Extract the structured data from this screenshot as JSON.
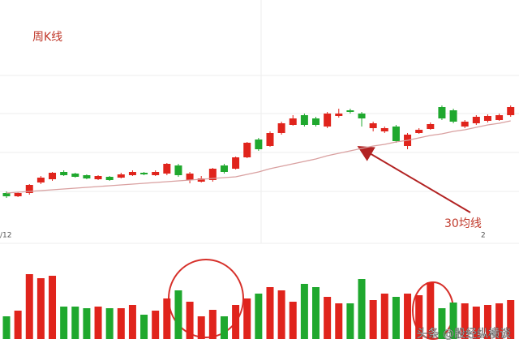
{
  "chart_data": {
    "type": "candlestick",
    "title": "周K线",
    "annotation": "30均线",
    "x_tick_labels": [
      "/12",
      "2"
    ],
    "up_color": "#e0241c",
    "down_color": "#1fa82e",
    "ylim": [
      0,
      280
    ],
    "ohlc": [
      [
        42,
        38,
        44,
        36
      ],
      [
        38,
        42,
        43,
        37
      ],
      [
        42,
        52,
        53,
        40
      ],
      [
        55,
        61,
        63,
        53
      ],
      [
        59,
        67,
        68,
        57
      ],
      [
        68,
        64,
        70,
        63
      ],
      [
        66,
        62,
        67,
        61
      ],
      [
        64,
        60,
        65,
        59
      ],
      [
        59,
        63,
        64,
        58
      ],
      [
        62,
        58,
        63,
        57
      ],
      [
        61,
        65,
        67,
        60
      ],
      [
        64,
        68,
        70,
        63
      ],
      [
        67,
        65,
        68,
        64
      ],
      [
        64,
        68,
        70,
        63
      ],
      [
        66,
        78,
        79,
        64
      ],
      [
        76,
        64,
        78,
        62
      ],
      [
        58,
        66,
        68,
        54
      ],
      [
        56,
        60,
        63,
        55
      ],
      [
        58,
        72,
        73,
        56
      ],
      [
        76,
        68,
        78,
        66
      ],
      [
        72,
        86,
        87,
        71
      ],
      [
        86,
        104,
        105,
        85
      ],
      [
        108,
        96,
        110,
        94
      ],
      [
        100,
        116,
        118,
        99
      ],
      [
        116,
        128,
        130,
        114
      ],
      [
        126,
        134,
        138,
        125
      ],
      [
        138,
        126,
        140,
        124
      ],
      [
        134,
        126,
        136,
        124
      ],
      [
        124,
        140,
        142,
        122
      ],
      [
        137,
        140,
        146,
        135
      ],
      [
        144,
        142,
        146,
        140
      ],
      [
        140,
        134,
        142,
        124
      ],
      [
        122,
        128,
        130,
        118
      ],
      [
        118,
        122,
        124,
        116
      ],
      [
        124,
        106,
        126,
        104
      ],
      [
        100,
        114,
        116,
        96
      ],
      [
        116,
        120,
        122,
        115
      ],
      [
        121,
        127,
        129,
        120
      ],
      [
        148,
        134,
        150,
        132
      ],
      [
        144,
        130,
        146,
        128
      ],
      [
        124,
        130,
        132,
        122
      ],
      [
        128,
        136,
        138,
        126
      ],
      [
        131,
        137,
        139,
        129
      ],
      [
        132,
        138,
        140,
        131
      ],
      [
        138,
        148,
        150,
        136
      ]
    ],
    "ma": {
      "color": "#d9a0a0",
      "values": [
        42,
        43,
        44,
        45,
        46,
        47,
        48,
        49,
        50,
        51,
        52,
        53,
        54,
        55,
        56,
        57,
        58,
        59,
        60,
        61,
        62,
        65,
        68,
        72,
        75,
        78,
        81,
        84,
        88,
        91,
        94,
        97,
        100,
        102,
        105,
        107,
        110,
        113,
        115,
        118,
        120,
        123,
        126,
        128,
        131
      ]
    },
    "volume": {
      "ylim": [
        0,
        85
      ],
      "values": [
        28,
        35,
        80,
        75,
        78,
        40,
        40,
        38,
        40,
        38,
        38,
        42,
        30,
        35,
        50,
        60,
        46,
        28,
        36,
        28,
        42,
        50,
        56,
        64,
        60,
        46,
        68,
        64,
        52,
        44,
        44,
        74,
        48,
        56,
        52,
        56,
        54,
        70,
        38,
        45,
        44,
        40,
        42,
        44,
        48
      ]
    }
  },
  "watermark": "头条 @股经纵横谈"
}
